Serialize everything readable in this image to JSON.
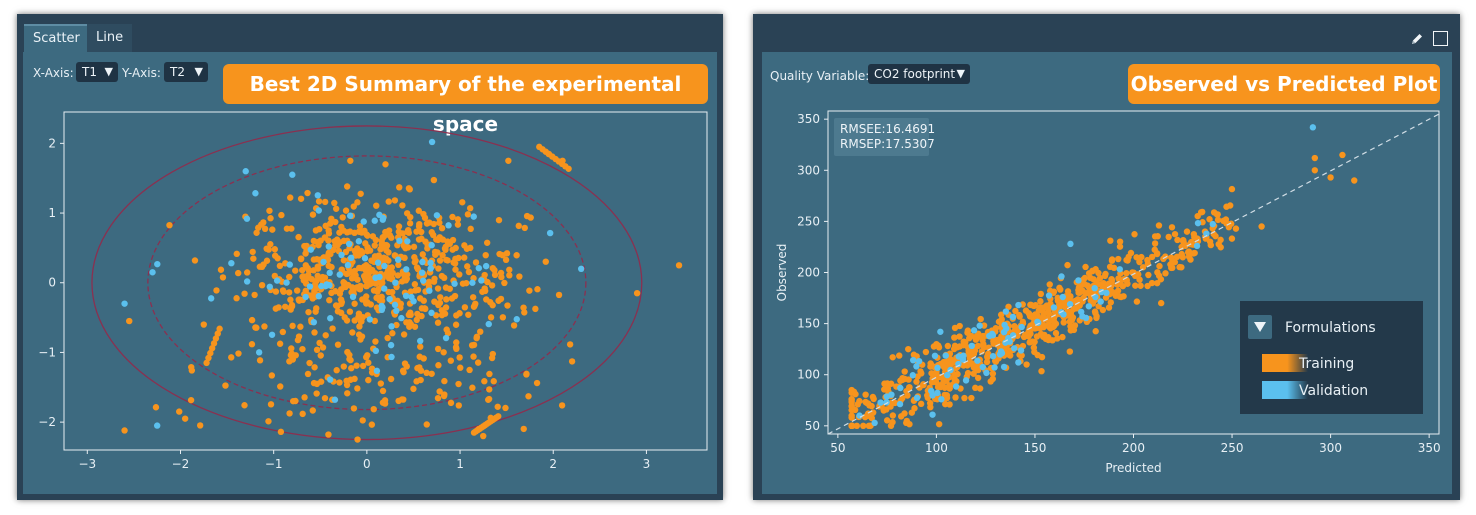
{
  "left_panel": {
    "tabs": [
      {
        "label": "Scatter"
      },
      {
        "label": "Line"
      }
    ],
    "x_axis_label": "X-Axis:",
    "x_axis_value": "T1",
    "y_axis_label": "Y-Axis:",
    "y_axis_value": "T2",
    "banner": "Best 2D Summary of the experimental space"
  },
  "right_panel": {
    "quality_label": "Quality Variable:",
    "quality_value": "CO2 footprint",
    "banner": "Observed vs Predicted Plot",
    "icons": [
      "pencil-icon",
      "maximize-icon"
    ]
  },
  "colors": {
    "training": "#f7941d",
    "validation": "#5bc0ee",
    "ellipse": "#8a3050",
    "frame": "#e8eef2",
    "diagonal": "#d0dde5"
  },
  "chart_data": [
    {
      "type": "scatter",
      "title": "Best 2D Summary of the experimental space",
      "xlabel": "T1",
      "ylabel": "T2",
      "xlim": [
        -3.25,
        3.65
      ],
      "ylim": [
        -2.4,
        2.45
      ],
      "xticks": [
        -3,
        -2,
        -1,
        0,
        1,
        2,
        3
      ],
      "yticks": [
        -2,
        -1,
        0,
        1,
        2
      ],
      "tick_labels_x": [
        "−3",
        "−2",
        "−1",
        "0",
        "1",
        "2",
        "3"
      ],
      "tick_labels_y": [
        "−2",
        "−1",
        "0",
        "1",
        "2"
      ],
      "confidence_ellipses": [
        {
          "style": "solid",
          "center": [
            0,
            0
          ],
          "rx": 2.95,
          "ry": 2.25
        },
        {
          "style": "dashed",
          "center": [
            0,
            0
          ],
          "rx": 2.35,
          "ry": 1.82
        }
      ],
      "series": [
        {
          "name": "Training",
          "n_points": 760,
          "approx_distribution": "dense cloud centered near (0, 0.2), spread T1 −1.6..2.2, T2 −1.3..1.4",
          "notable_points": [
            [
              -2.6,
              -2.12
            ],
            [
              -2.55,
              -0.55
            ],
            [
              -1.95,
              -1.95
            ],
            [
              -1.75,
              -0.6
            ],
            [
              1.2,
              -2.1
            ],
            [
              1.95,
              1.85
            ],
            [
              2.1,
              1.75
            ],
            [
              3.35,
              0.25
            ],
            [
              2.9,
              -0.15
            ],
            [
              -0.1,
              -2.25
            ],
            [
              0.2,
              1.7
            ]
          ]
        },
        {
          "name": "Validation",
          "n_points": 90,
          "approx_distribution": "interleaved with training cloud",
          "notable_points": [
            [
              -2.25,
              -2.05
            ],
            [
              -2.6,
              -0.3
            ],
            [
              -2.3,
              0.15
            ],
            [
              0.7,
              2.02
            ],
            [
              -1.3,
              1.6
            ],
            [
              2.3,
              0.2
            ],
            [
              -0.8,
              1.55
            ]
          ]
        }
      ]
    },
    {
      "type": "scatter",
      "title": "Observed vs Predicted Plot",
      "xlabel": "Predicted",
      "ylabel": "Observed",
      "xlim": [
        45,
        355
      ],
      "ylim": [
        42,
        358
      ],
      "xticks": [
        50,
        100,
        150,
        200,
        250,
        300,
        350
      ],
      "yticks": [
        50,
        100,
        150,
        200,
        250,
        300,
        350
      ],
      "tick_labels_x": [
        "50",
        "100",
        "150",
        "200",
        "250",
        "300",
        "350"
      ],
      "tick_labels_y": [
        "50",
        "100",
        "150",
        "200",
        "250",
        "300",
        "350"
      ],
      "annotation": [
        "RMSEE:16.4691",
        "RMSEP:17.5307"
      ],
      "reference_line": "y = x (dashed)",
      "legend": {
        "title": "Formulations",
        "position": "bottom-right",
        "entries": [
          "Training",
          "Validation"
        ]
      },
      "series": [
        {
          "name": "Training",
          "n_points": 720,
          "approx_distribution": "along diagonal, predicted 57..312, residual sd ~16",
          "notable_points": [
            [
              57,
              60
            ],
            [
              66,
              70
            ],
            [
              90,
              118
            ],
            [
              292,
              300
            ],
            [
              306,
              315
            ],
            [
              312,
              290
            ],
            [
              300,
              293
            ],
            [
              265,
              245
            ],
            [
              292,
              312
            ]
          ]
        },
        {
          "name": "Validation",
          "n_points": 80,
          "approx_distribution": "along diagonal, predicted 60..310",
          "notable_points": [
            [
              291,
              342
            ],
            [
              102,
              142
            ],
            [
              168,
              228
            ],
            [
              237,
              238
            ],
            [
              61,
              60
            ]
          ]
        }
      ]
    }
  ]
}
